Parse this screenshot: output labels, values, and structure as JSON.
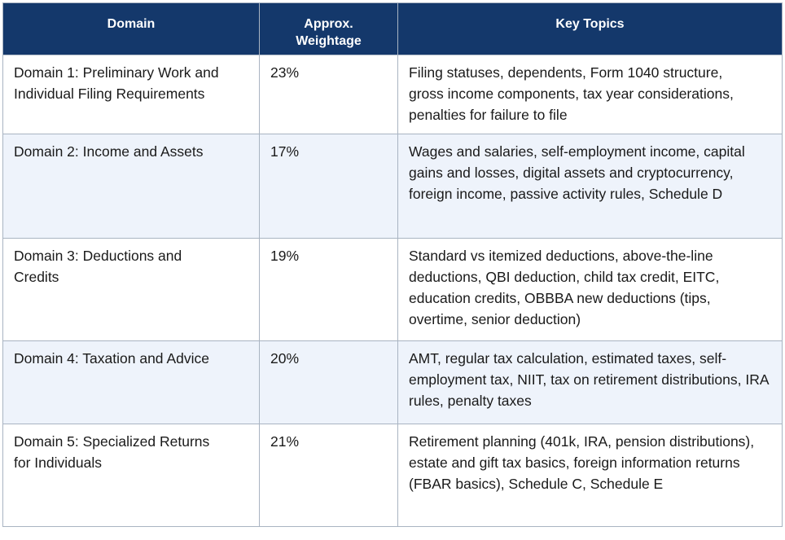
{
  "table": {
    "headers": {
      "domain": "Domain",
      "weightage": "Approx. Weightage",
      "topics": "Key Topics"
    },
    "rows": [
      {
        "domain": "Domain 1: Preliminary Work and Individual Filing Requirements",
        "weightage": "23%",
        "topics": "Filing statuses, dependents, Form 1040 structure, gross income components, tax year considerations, penalties for failure to file"
      },
      {
        "domain": "Domain 2: Income and Assets",
        "weightage": "17%",
        "topics": "Wages and salaries, self-employment income, capital gains and losses, digital assets and cryptocurrency, foreign income, passive activity rules, Schedule D"
      },
      {
        "domain": "Domain 3: Deductions and Credits",
        "weightage": "19%",
        "topics": "Standard vs itemized deductions, above-the-line deductions, QBI deduction, child tax credit, EITC, education credits, OBBBA new deductions (tips, overtime, senior deduction)"
      },
      {
        "domain": "Domain 4: Taxation and Advice",
        "weightage": "20%",
        "topics": "AMT, regular tax calculation, estimated taxes, self-employment tax, NIIT, tax on retirement distributions, IRA rules, penalty taxes"
      },
      {
        "domain": "Domain 5: Specialized Returns for Individuals",
        "weightage": "21%",
        "topics": "Retirement planning (401k, IRA, pension distributions), estate and gift tax basics, foreign information returns (FBAR basics), Schedule C, Schedule E"
      }
    ]
  },
  "colors": {
    "header_bg": "#14386b",
    "header_text": "#ffffff",
    "alt_row_bg": "#eef3fb",
    "border": "#a9b4c2"
  }
}
